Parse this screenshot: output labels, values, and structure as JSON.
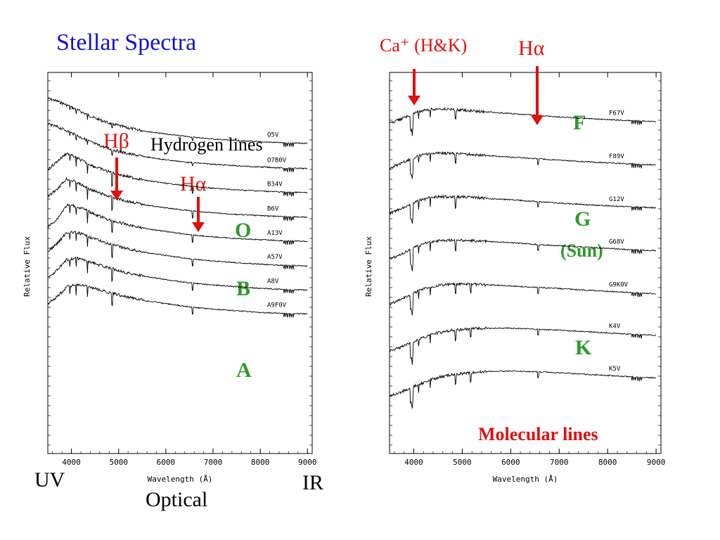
{
  "slide": {
    "title": "Stellar Spectra",
    "colors": {
      "title": "#1414cc",
      "arrows": "#e01010",
      "class_letters": "#2e9a2e",
      "plot_frame": "#000000"
    }
  },
  "annotations": {
    "h_beta": "Hβ",
    "hydrogen_lines": "Hydrogen lines",
    "h_alpha_left": "Hα",
    "class_o": "O",
    "class_b": "B",
    "class_a": "A",
    "uv": "UV",
    "ir": "IR",
    "optical": "Optical",
    "ca_hk": "Ca⁺ (H&K)",
    "h_alpha_right": "Hα",
    "class_f": "F",
    "class_g": "G",
    "sun": "(Sun)",
    "class_k": "K",
    "molecular_lines": "Molecular lines"
  },
  "chart_data": [
    {
      "type": "line",
      "xlabel": "Wavelength (Å)",
      "ylabel": "Relative Flux",
      "xlim": [
        3500,
        9100
      ],
      "xticks": [
        4000,
        5000,
        6000,
        7000,
        8000,
        9000
      ],
      "x": [
        3500,
        3700,
        3900,
        4100,
        4300,
        4500,
        4800,
        5200,
        5600,
        6000,
        6500,
        7000,
        7500,
        8000,
        8500,
        9000
      ],
      "series": [
        {
          "name": "O5V",
          "values": [
            1.0,
            0.95,
            0.88,
            0.8,
            0.72,
            0.64,
            0.55,
            0.46,
            0.4,
            0.35,
            0.3,
            0.26,
            0.23,
            0.21,
            0.19,
            0.18
          ]
        },
        {
          "name": "O7B0V",
          "values": [
            0.98,
            0.93,
            0.86,
            0.78,
            0.7,
            0.62,
            0.53,
            0.44,
            0.38,
            0.33,
            0.28,
            0.25,
            0.22,
            0.2,
            0.18,
            0.17
          ]
        },
        {
          "name": "B34V",
          "values": [
            0.6,
            0.75,
            0.9,
            0.82,
            0.73,
            0.65,
            0.56,
            0.47,
            0.4,
            0.35,
            0.3,
            0.26,
            0.23,
            0.21,
            0.19,
            0.18
          ]
        },
        {
          "name": "B6V",
          "values": [
            0.55,
            0.7,
            0.88,
            0.82,
            0.73,
            0.65,
            0.56,
            0.47,
            0.4,
            0.35,
            0.3,
            0.26,
            0.23,
            0.21,
            0.19,
            0.18
          ]
        },
        {
          "name": "A13V",
          "values": [
            0.45,
            0.6,
            0.85,
            0.83,
            0.76,
            0.68,
            0.58,
            0.49,
            0.42,
            0.37,
            0.31,
            0.27,
            0.24,
            0.22,
            0.2,
            0.19
          ]
        },
        {
          "name": "A57V",
          "values": [
            0.45,
            0.6,
            0.8,
            0.8,
            0.75,
            0.68,
            0.59,
            0.5,
            0.43,
            0.38,
            0.32,
            0.28,
            0.25,
            0.22,
            0.2,
            0.19
          ]
        },
        {
          "name": "A8V",
          "values": [
            0.42,
            0.56,
            0.75,
            0.78,
            0.74,
            0.68,
            0.6,
            0.51,
            0.44,
            0.39,
            0.33,
            0.29,
            0.26,
            0.23,
            0.21,
            0.2
          ]
        },
        {
          "name": "A9F0V",
          "values": [
            0.4,
            0.53,
            0.7,
            0.75,
            0.72,
            0.67,
            0.6,
            0.52,
            0.45,
            0.4,
            0.34,
            0.3,
            0.27,
            0.24,
            0.22,
            0.21
          ]
        }
      ],
      "line_markers": {
        "Hβ": 4861,
        "Hα": 6563
      }
    },
    {
      "type": "line",
      "xlabel": "Wavelength (Å)",
      "ylabel": "Relative Flux",
      "xlim": [
        3500,
        9100
      ],
      "xticks": [
        4000,
        5000,
        6000,
        7000,
        8000,
        9000
      ],
      "x": [
        3500,
        3700,
        3900,
        4100,
        4300,
        4500,
        4800,
        5200,
        5600,
        6000,
        6500,
        7000,
        7500,
        8000,
        8500,
        9000
      ],
      "series": [
        {
          "name": "F67V",
          "values": [
            0.45,
            0.58,
            0.7,
            0.82,
            0.88,
            0.9,
            0.88,
            0.84,
            0.8,
            0.76,
            0.71,
            0.66,
            0.62,
            0.58,
            0.55,
            0.52
          ]
        },
        {
          "name": "F89V",
          "values": [
            0.42,
            0.55,
            0.68,
            0.8,
            0.86,
            0.88,
            0.87,
            0.84,
            0.8,
            0.76,
            0.72,
            0.67,
            0.63,
            0.59,
            0.56,
            0.53
          ]
        },
        {
          "name": "G12V",
          "values": [
            0.38,
            0.5,
            0.63,
            0.76,
            0.84,
            0.88,
            0.88,
            0.86,
            0.82,
            0.79,
            0.74,
            0.69,
            0.65,
            0.61,
            0.58,
            0.55
          ]
        },
        {
          "name": "G68V",
          "values": [
            0.32,
            0.44,
            0.58,
            0.72,
            0.82,
            0.87,
            0.88,
            0.87,
            0.84,
            0.81,
            0.76,
            0.72,
            0.68,
            0.64,
            0.6,
            0.57
          ]
        },
        {
          "name": "G9K0V",
          "values": [
            0.28,
            0.4,
            0.54,
            0.68,
            0.78,
            0.84,
            0.87,
            0.87,
            0.85,
            0.82,
            0.78,
            0.74,
            0.7,
            0.66,
            0.62,
            0.59
          ]
        },
        {
          "name": "K4V",
          "values": [
            0.18,
            0.28,
            0.4,
            0.52,
            0.64,
            0.72,
            0.8,
            0.84,
            0.86,
            0.86,
            0.83,
            0.8,
            0.76,
            0.72,
            0.68,
            0.65
          ]
        },
        {
          "name": "K5V",
          "values": [
            0.15,
            0.24,
            0.36,
            0.48,
            0.6,
            0.69,
            0.78,
            0.84,
            0.87,
            0.88,
            0.86,
            0.83,
            0.79,
            0.75,
            0.71,
            0.68
          ]
        }
      ],
      "line_markers": {
        "Ca⁺ K": 3934,
        "Ca⁺ H": 3968,
        "Hα": 6563
      }
    }
  ]
}
